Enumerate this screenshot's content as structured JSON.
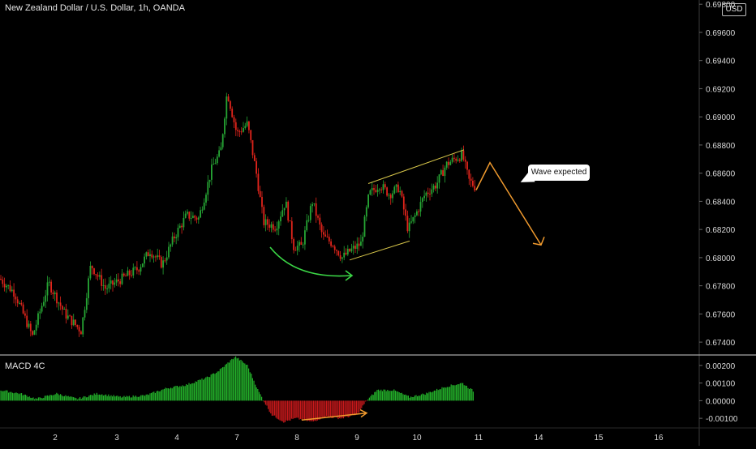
{
  "header": {
    "title": "New Zealand Dollar / U.S. Dollar, 1h, OANDA",
    "currency_badge": "USD"
  },
  "macd_panel": {
    "label": "MACD 4C"
  },
  "annotation": {
    "callout_text": "Wave expected"
  },
  "colors": {
    "background": "#000000",
    "candle_up": "#26a534",
    "candle_down": "#e0241b",
    "macd_positive": "#23b12a",
    "macd_negative": "#c8191b",
    "channel_line": "#d7c64a",
    "arrow_green": "#3bd646",
    "arrow_orange": "#f09a2e",
    "separator": "#cfcfcf"
  },
  "chart_data": [
    {
      "type": "candlestick",
      "title": "New Zealand Dollar / U.S. Dollar, 1h, OANDA",
      "ylim": [
        0.6732,
        0.6983
      ],
      "y_ticks": [
        "0.67400",
        "0.67600",
        "0.67800",
        "0.68000",
        "0.68200",
        "0.68400",
        "0.68600",
        "0.68800",
        "0.69000",
        "0.69200",
        "0.69400",
        "0.69600",
        "0.69800"
      ],
      "x_ticks": [
        "2",
        "3",
        "4",
        "7",
        "8",
        "9",
        "10",
        "11",
        "14",
        "15",
        "16"
      ],
      "path_points": [
        [
          0,
          0.6785
        ],
        [
          18,
          0.6775
        ],
        [
          40,
          0.6744
        ],
        [
          60,
          0.6782
        ],
        [
          80,
          0.676
        ],
        [
          100,
          0.6748
        ],
        [
          112,
          0.6795
        ],
        [
          130,
          0.6778
        ],
        [
          150,
          0.6785
        ],
        [
          170,
          0.6792
        ],
        [
          185,
          0.6805
        ],
        [
          200,
          0.6795
        ],
        [
          215,
          0.6815
        ],
        [
          230,
          0.683
        ],
        [
          245,
          0.6828
        ],
        [
          262,
          0.6865
        ],
        [
          272,
          0.6875
        ],
        [
          280,
          0.6918
        ],
        [
          292,
          0.6888
        ],
        [
          305,
          0.6895
        ],
        [
          316,
          0.686
        ],
        [
          325,
          0.6825
        ],
        [
          340,
          0.6822
        ],
        [
          352,
          0.684
        ],
        [
          362,
          0.6808
        ],
        [
          372,
          0.6808
        ],
        [
          385,
          0.684
        ],
        [
          398,
          0.6815
        ],
        [
          410,
          0.681
        ],
        [
          422,
          0.68
        ],
        [
          432,
          0.6805
        ],
        [
          445,
          0.681
        ],
        [
          455,
          0.6845
        ],
        [
          468,
          0.6852
        ],
        [
          480,
          0.6845
        ],
        [
          492,
          0.685
        ],
        [
          503,
          0.682
        ],
        [
          512,
          0.683
        ],
        [
          524,
          0.6845
        ],
        [
          538,
          0.6852
        ],
        [
          550,
          0.6866
        ],
        [
          560,
          0.687
        ],
        [
          570,
          0.6873
        ],
        [
          578,
          0.6855
        ],
        [
          586,
          0.685
        ]
      ],
      "channel": {
        "upper": [
          [
            454,
            0.68526
          ],
          [
            572,
            0.68766
          ]
        ],
        "lower": [
          [
            431,
            0.67983
          ],
          [
            505,
            0.68118
          ]
        ]
      },
      "projection": [
        [
          587,
          0.6848
        ],
        [
          604,
          0.68675
        ],
        [
          667,
          0.6809
        ]
      ]
    },
    {
      "type": "bar",
      "title": "MACD 4C",
      "ylim": [
        -0.0015,
        0.0025
      ],
      "y_ticks": [
        "0.00200",
        "0.00100",
        "0.00000",
        "-0.00100"
      ],
      "profile": [
        [
          0,
          0.0006
        ],
        [
          25,
          0.0004
        ],
        [
          45,
          0.0001
        ],
        [
          70,
          0.0004
        ],
        [
          95,
          0.0001
        ],
        [
          120,
          0.0004
        ],
        [
          150,
          0.0002
        ],
        [
          180,
          0.0003
        ],
        [
          205,
          0.0007
        ],
        [
          230,
          0.0009
        ],
        [
          255,
          0.0013
        ],
        [
          270,
          0.0017
        ],
        [
          290,
          0.0025
        ],
        [
          305,
          0.002
        ],
        [
          318,
          0.0006
        ],
        [
          325,
          0.0
        ],
        [
          335,
          -0.0008
        ],
        [
          350,
          -0.0012
        ],
        [
          365,
          -0.001
        ],
        [
          385,
          -0.0012
        ],
        [
          400,
          -0.0009
        ],
        [
          420,
          -0.001
        ],
        [
          440,
          -0.0008
        ],
        [
          452,
          0.0
        ],
        [
          465,
          0.0006
        ],
        [
          485,
          0.0006
        ],
        [
          505,
          0.0002
        ],
        [
          525,
          0.0004
        ],
        [
          550,
          0.0008
        ],
        [
          570,
          0.001
        ],
        [
          585,
          0.0005
        ]
      ],
      "arrow": [
        [
          372,
          -0.0011
        ],
        [
          452,
          -0.0007
        ]
      ]
    }
  ]
}
